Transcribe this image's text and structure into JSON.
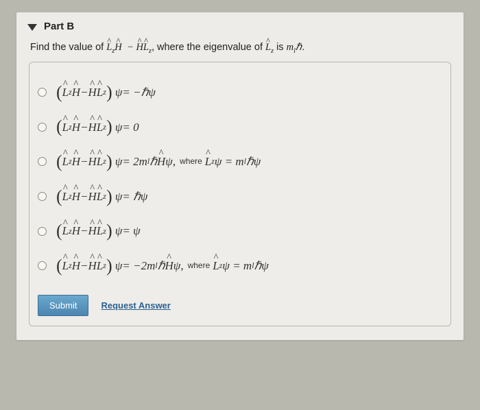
{
  "header": {
    "title": "Part B"
  },
  "prompt": {
    "prefix": "Find the value of ",
    "middle": ", where the eigenvalue of ",
    "suffix": " is ",
    "end": "."
  },
  "options": {
    "rhs1": " = −ℏψ",
    "rhs2": " = 0",
    "rhs3_a": " = 2m",
    "rhs3_b": "ℏ",
    "rhs3_c": "ψ",
    "rhs3_where_a": "ψ = m",
    "rhs3_where_b": "ℏψ",
    "rhs4": " = ℏψ",
    "rhs5": " = ψ",
    "rhs6_a": " = −2m",
    "rhs6_b": "ℏ",
    "rhs6_c": "ψ",
    "rhs6_where_a": "ψ = m",
    "rhs6_where_b": "ℏψ",
    "where_label": "where",
    "psi": "ψ",
    "ml_h": "ℏ",
    "ml": "m",
    "l_sub": "l"
  },
  "actions": {
    "submit": "Submit",
    "request": "Request Answer"
  }
}
